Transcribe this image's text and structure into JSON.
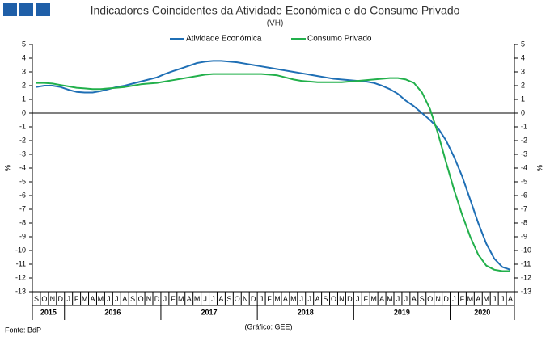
{
  "chart_data": {
    "type": "line",
    "title": "Indicadores Coincidentes da Atividade Económica e do Consumo Privado",
    "subtitle": "(VH)",
    "y_label": "%",
    "y2_label": "%",
    "source": "Fonte: BdP",
    "credit": "(Gráfico: GEE)",
    "categories": [
      "S",
      "O",
      "N",
      "D",
      "J",
      "F",
      "M",
      "A",
      "M",
      "J",
      "J",
      "A",
      "S",
      "O",
      "N",
      "D",
      "J",
      "F",
      "M",
      "A",
      "M",
      "J",
      "J",
      "A",
      "S",
      "O",
      "N",
      "D",
      "J",
      "F",
      "M",
      "A",
      "M",
      "J",
      "J",
      "A",
      "S",
      "O",
      "N",
      "D",
      "J",
      "F",
      "M",
      "A",
      "M",
      "J",
      "J",
      "A",
      "S",
      "O",
      "N",
      "D",
      "J",
      "F",
      "M",
      "A",
      "M",
      "J",
      "J",
      "A"
    ],
    "years": [
      "2015",
      "2016",
      "2017",
      "2018",
      "2019",
      "2020"
    ],
    "series": [
      {
        "name": "Atividade Económica",
        "color": "#1f6fb5",
        "values": [
          1.9,
          2.0,
          2.0,
          1.9,
          1.7,
          1.55,
          1.5,
          1.5,
          1.6,
          1.75,
          1.9,
          2.0,
          2.15,
          2.3,
          2.45,
          2.6,
          2.85,
          3.05,
          3.25,
          3.45,
          3.65,
          3.75,
          3.8,
          3.8,
          3.75,
          3.7,
          3.6,
          3.5,
          3.4,
          3.3,
          3.2,
          3.1,
          3.0,
          2.9,
          2.8,
          2.7,
          2.6,
          2.5,
          2.45,
          2.4,
          2.35,
          2.3,
          2.2,
          2.0,
          1.75,
          1.4,
          0.9,
          0.5,
          0.0,
          -0.5,
          -1.1,
          -2.0,
          -3.2,
          -4.6,
          -6.3,
          -8.0,
          -9.5,
          -10.6,
          -11.2,
          -11.4
        ]
      },
      {
        "name": "Consumo Privado",
        "color": "#22b04b",
        "values": [
          2.2,
          2.2,
          2.15,
          2.05,
          1.95,
          1.85,
          1.8,
          1.75,
          1.75,
          1.8,
          1.85,
          1.9,
          2.0,
          2.1,
          2.15,
          2.2,
          2.3,
          2.4,
          2.5,
          2.6,
          2.7,
          2.8,
          2.85,
          2.85,
          2.85,
          2.85,
          2.85,
          2.85,
          2.85,
          2.8,
          2.75,
          2.6,
          2.45,
          2.35,
          2.3,
          2.25,
          2.25,
          2.25,
          2.25,
          2.3,
          2.35,
          2.4,
          2.45,
          2.5,
          2.55,
          2.55,
          2.45,
          2.2,
          1.5,
          0.3,
          -1.5,
          -3.6,
          -5.6,
          -7.4,
          -9.0,
          -10.3,
          -11.1,
          -11.4,
          -11.5,
          -11.5
        ]
      }
    ],
    "ylim": [
      -13,
      5
    ],
    "yticks": [
      -13,
      -12,
      -11,
      -10,
      -9,
      -8,
      -7,
      -6,
      -5,
      -4,
      -3,
      -2,
      -1,
      0,
      1,
      2,
      3,
      4,
      5
    ],
    "y2lim": [
      -13,
      5
    ],
    "y2ticks": [
      -13,
      -12,
      -11,
      -10,
      -9,
      -8,
      -7,
      -6,
      -5,
      -4,
      -3,
      -2,
      -1,
      0,
      1,
      2,
      3,
      4,
      5
    ],
    "zero_line": true
  }
}
